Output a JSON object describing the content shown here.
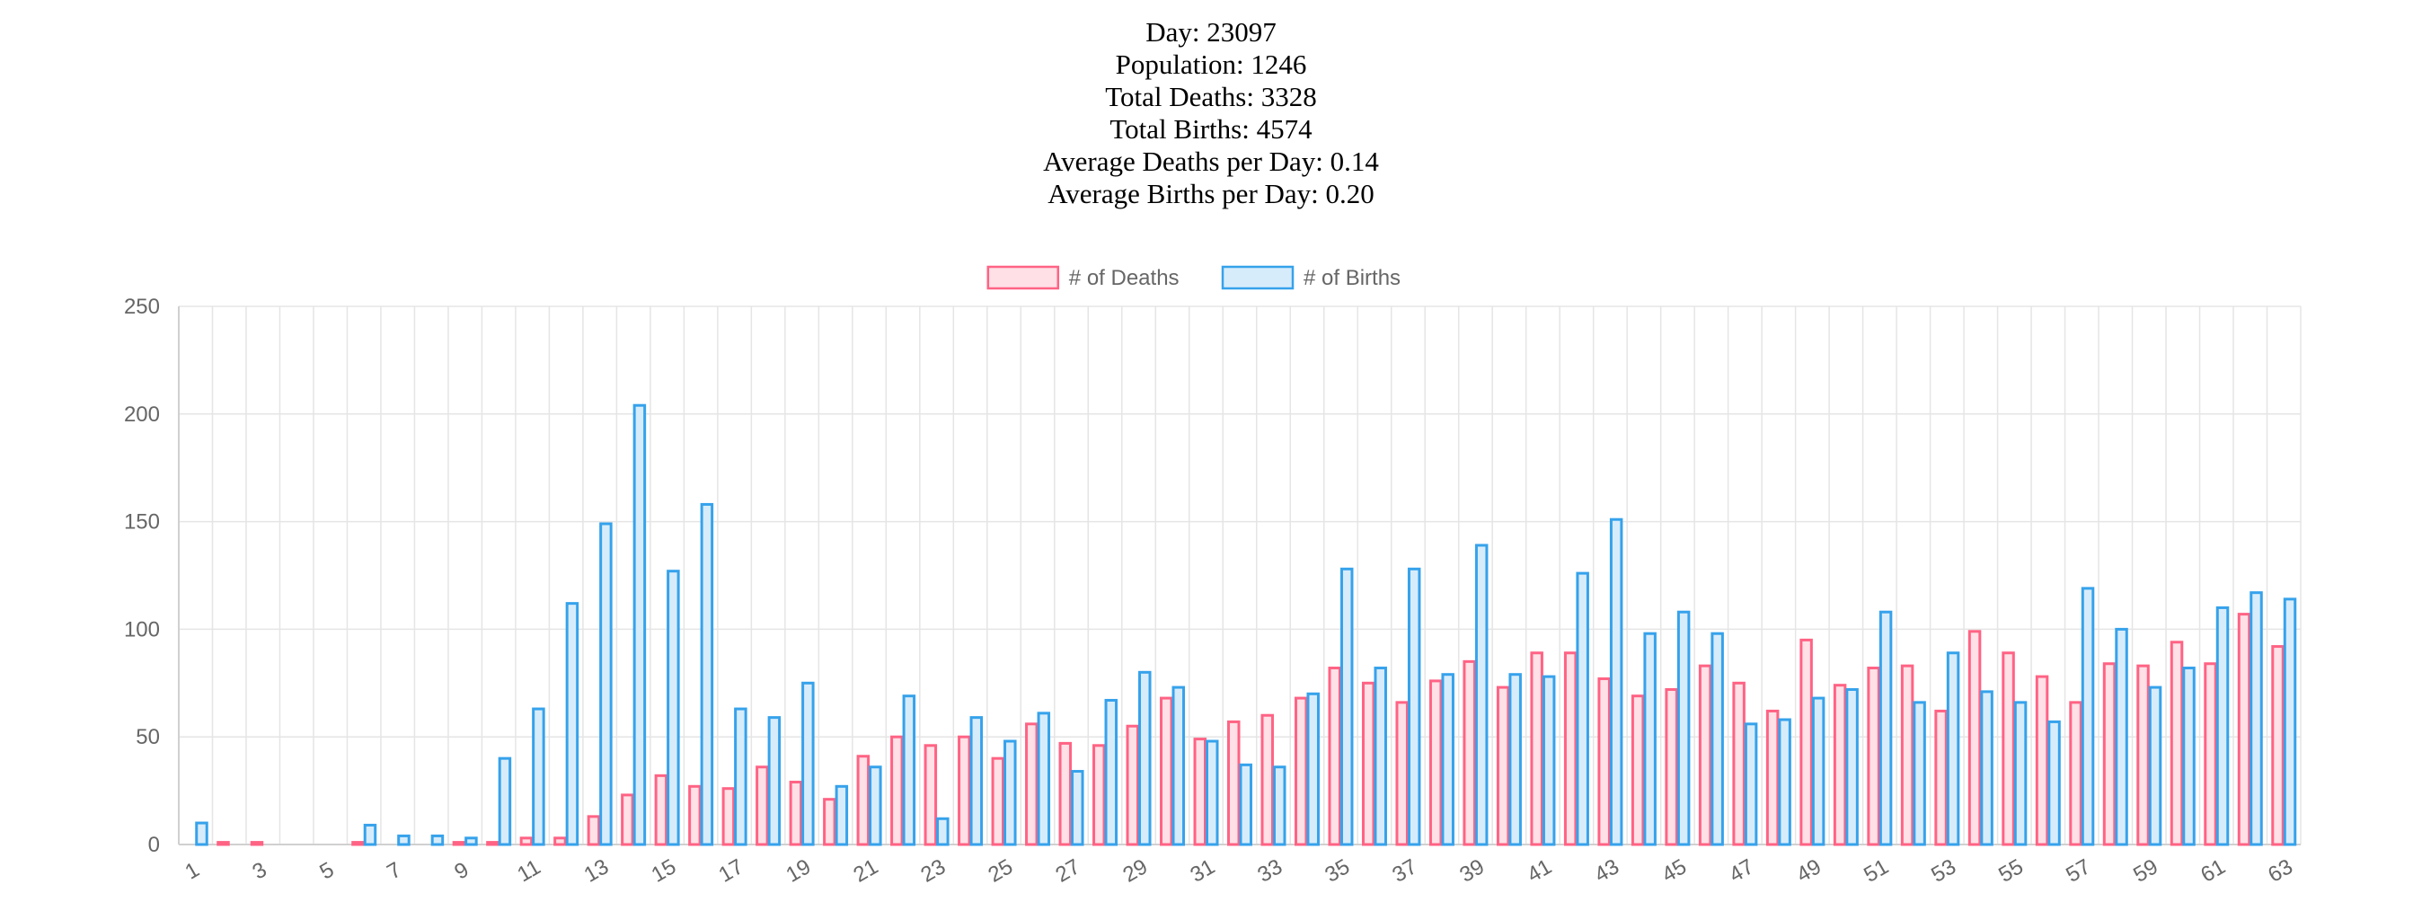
{
  "stats": {
    "day": "Day: 23097",
    "population": "Population: 1246",
    "total_deaths": "Total Deaths: 3328",
    "total_births": "Total Births: 4574",
    "avg_deaths": "Average Deaths per Day: 0.14",
    "avg_births": "Average Births per Day: 0.20"
  },
  "colors": {
    "deaths_border": "#ff6384",
    "deaths_fill": "#ffe0e6",
    "births_border": "#36a2eb",
    "births_fill": "#d7ecfb",
    "grid": "#e5e5e5",
    "tick_text": "#666666"
  },
  "chart_data": {
    "type": "bar",
    "legend_position": "top",
    "grid": true,
    "ylim": [
      0,
      250
    ],
    "yticks": [
      0,
      50,
      100,
      150,
      200,
      250
    ],
    "categories": [
      "1",
      "2",
      "3",
      "4",
      "5",
      "6",
      "7",
      "8",
      "9",
      "10",
      "11",
      "12",
      "13",
      "14",
      "15",
      "16",
      "17",
      "18",
      "19",
      "20",
      "21",
      "22",
      "23",
      "24",
      "25",
      "26",
      "27",
      "28",
      "29",
      "30",
      "31",
      "32",
      "33",
      "34",
      "35",
      "36",
      "37",
      "38",
      "39",
      "40",
      "41",
      "42",
      "43",
      "44",
      "45",
      "46",
      "47",
      "48",
      "49",
      "50",
      "51",
      "52",
      "53",
      "54",
      "55",
      "56",
      "57",
      "58",
      "59",
      "60",
      "61",
      "62",
      "63"
    ],
    "xtick_labels": [
      "1",
      "3",
      "5",
      "7",
      "9",
      "11",
      "13",
      "15",
      "17",
      "19",
      "21",
      "23",
      "25",
      "27",
      "29",
      "31",
      "33",
      "35",
      "37",
      "39",
      "41",
      "43",
      "45",
      "47",
      "49",
      "51",
      "53",
      "55",
      "57",
      "59",
      "61",
      "63"
    ],
    "series": [
      {
        "name": "# of Deaths",
        "values": [
          0,
          1,
          1,
          0,
          0,
          1,
          0,
          0,
          1,
          1,
          3,
          3,
          13,
          23,
          32,
          27,
          26,
          36,
          29,
          21,
          41,
          50,
          46,
          50,
          40,
          56,
          47,
          46,
          55,
          68,
          49,
          57,
          60,
          68,
          82,
          75,
          66,
          76,
          85,
          73,
          89,
          89,
          77,
          69,
          72,
          83,
          75,
          62,
          95,
          74,
          82,
          83,
          62,
          99,
          89,
          78,
          66,
          84,
          83,
          94,
          84,
          107,
          92
        ]
      },
      {
        "name": "# of Births",
        "values": [
          10,
          0,
          0,
          0,
          0,
          9,
          4,
          4,
          3,
          40,
          63,
          112,
          149,
          204,
          127,
          158,
          63,
          59,
          75,
          27,
          36,
          69,
          12,
          59,
          48,
          61,
          34,
          67,
          80,
          73,
          48,
          37,
          36,
          70,
          128,
          82,
          128,
          79,
          139,
          79,
          78,
          126,
          151,
          98,
          108,
          98,
          56,
          58,
          68,
          72,
          108,
          66,
          89,
          71,
          66,
          57,
          119,
          100,
          73,
          82,
          110,
          117,
          114
        ]
      }
    ]
  }
}
